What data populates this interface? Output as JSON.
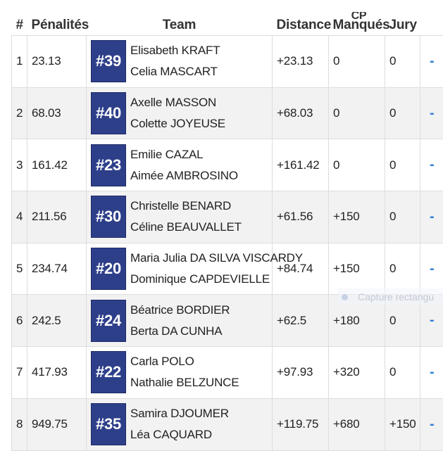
{
  "headers": {
    "rank": "#",
    "penalties": "Pénalités",
    "team": "Team",
    "distance": "Distance",
    "cp_top": "CP",
    "cp_missed": "Manqués",
    "jury": "Jury"
  },
  "rows": [
    {
      "rank": "1",
      "penalties": "23.13",
      "bib": "#39",
      "member1": "Elisabeth KRAFT",
      "member2": "Celia MASCART",
      "distance": "+23.13",
      "cp": "0",
      "jury": "0",
      "action": "-"
    },
    {
      "rank": "2",
      "penalties": "68.03",
      "bib": "#40",
      "member1": "Axelle MASSON",
      "member2": "Colette JOYEUSE",
      "distance": "+68.03",
      "cp": "0",
      "jury": "0",
      "action": "-"
    },
    {
      "rank": "3",
      "penalties": "161.42",
      "bib": "#23",
      "member1": "Emilie CAZAL",
      "member2": "Aimée AMBROSINO",
      "distance": "+161.42",
      "cp": "0",
      "jury": "0",
      "action": "-"
    },
    {
      "rank": "4",
      "penalties": "211.56",
      "bib": "#30",
      "member1": "Christelle BENARD",
      "member2": "Céline BEAUVALLET",
      "distance": "+61.56",
      "cp": "+150",
      "jury": "0",
      "action": "-"
    },
    {
      "rank": "5",
      "penalties": "234.74",
      "bib": "#20",
      "member1": "Maria Julia DA SILVA VISCARDY",
      "member2": "Dominique CAPDEVIELLE",
      "distance": "+84.74",
      "cp": "+150",
      "jury": "0",
      "action": "-"
    },
    {
      "rank": "6",
      "penalties": "242.5",
      "bib": "#24",
      "member1": "Béatrice BORDIER",
      "member2": "Berta DA CUNHA",
      "distance": "+62.5",
      "cp": "+180",
      "jury": "0",
      "action": "-"
    },
    {
      "rank": "7",
      "penalties": "417.93",
      "bib": "#22",
      "member1": "Carla POLO",
      "member2": "Nathalie BELZUNCE",
      "distance": "+97.93",
      "cp": "+320",
      "jury": "0",
      "action": "-"
    },
    {
      "rank": "8",
      "penalties": "949.75",
      "bib": "#35",
      "member1": "Samira DJOUMER",
      "member2": "Léa CAQUARD",
      "distance": "+119.75",
      "cp": "+680",
      "jury": "+150",
      "action": "-"
    }
  ],
  "overlay": {
    "capture_label": "Capture rectangu"
  },
  "colors": {
    "badge_bg": "#2e3f8a",
    "action_blue": "#2f7fd6",
    "stripe": "#f2f2f2"
  }
}
